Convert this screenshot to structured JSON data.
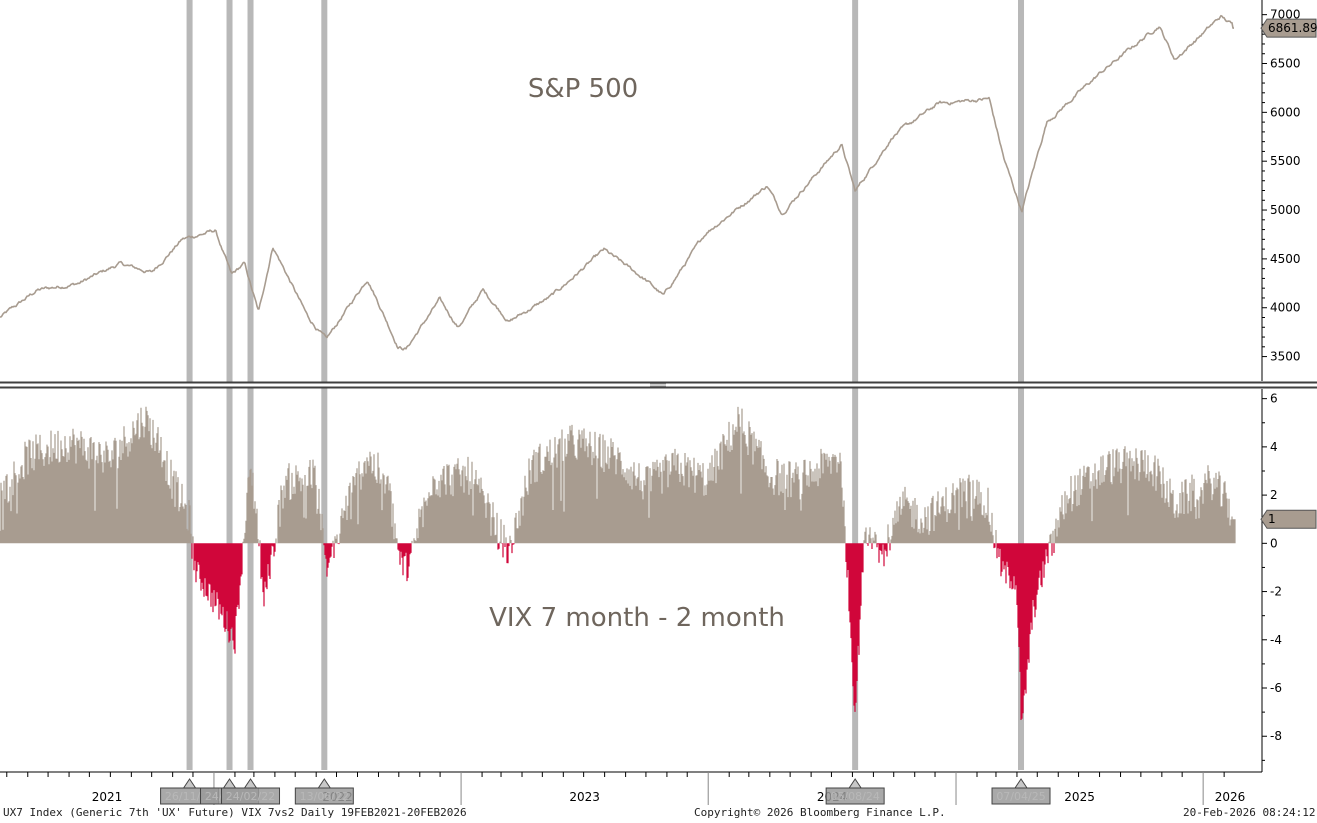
{
  "footer": {
    "left": "UX7 Index (Generic 7th 'UX' Future) VIX 7vs2 Daily 19FEB2021-20FEB2026",
    "center": "Copyright© 2026 Bloomberg Finance L.P.",
    "right": "20-Feb-2026 08:24:12"
  },
  "colors": {
    "price_line": "#a89c90",
    "positive_fill": "#a89c90",
    "negative_fill": "#d0063a",
    "event_band": "#b8b8b8",
    "divider": "#404040",
    "last_label_bg": "#a89c90"
  },
  "chart_data": [
    {
      "type": "line",
      "title": "S&P 500",
      "ylim": [
        3250,
        7150
      ],
      "yticks": [
        3500,
        4000,
        4500,
        5000,
        5500,
        6000,
        6500,
        7000
      ],
      "last_value_label": "6861.89",
      "x": [
        "2021-02-19",
        "2021-04-15",
        "2021-06-15",
        "2021-08-15",
        "2021-10-01",
        "2021-11-15",
        "2022-01-03",
        "2022-01-27",
        "2022-02-15",
        "2022-03-08",
        "2022-03-29",
        "2022-05-20",
        "2022-06-16",
        "2022-08-16",
        "2022-09-30",
        "2022-10-12",
        "2022-11-30",
        "2022-12-28",
        "2023-02-02",
        "2023-03-13",
        "2023-05-15",
        "2023-07-31",
        "2023-09-30",
        "2023-10-27",
        "2023-12-29",
        "2024-03-28",
        "2024-04-19",
        "2024-07-16",
        "2024-08-05",
        "2024-09-30",
        "2024-12-06",
        "2025-02-19",
        "2025-03-13",
        "2025-04-08",
        "2025-05-15",
        "2025-07-31",
        "2025-10-28",
        "2025-11-20",
        "2026-01-27",
        "2026-02-20"
      ],
      "values": [
        3900,
        4180,
        4250,
        4450,
        4360,
        4700,
        4790,
        4330,
        4450,
        3950,
        4630,
        3900,
        3670,
        4300,
        3600,
        3580,
        4080,
        3800,
        4180,
        3860,
        4120,
        4590,
        4290,
        4120,
        4770,
        5250,
        4970,
        5670,
        5190,
        5760,
        6090,
        6140,
        5520,
        4990,
        5900,
        6390,
        6890,
        6540,
        6980,
        6861.89
      ]
    },
    {
      "type": "area",
      "title": "VIX 7 month - 2 month",
      "ylim": [
        -9.4,
        6.4
      ],
      "yticks": [
        6,
        4,
        2,
        0,
        -2,
        -4,
        -6,
        -8
      ],
      "last_value_label": "1",
      "x": [
        "2021-02-19",
        "2021-04-01",
        "2021-06-01",
        "2021-08-01",
        "2021-09-20",
        "2021-10-15",
        "2021-11-01",
        "2021-11-26",
        "2021-12-05",
        "2021-12-20",
        "2022-01-10",
        "2022-02-01",
        "2022-02-24",
        "2022-03-07",
        "2022-03-15",
        "2022-04-15",
        "2022-06-01",
        "2022-06-16",
        "2022-07-15",
        "2022-08-15",
        "2022-09-15",
        "2022-10-03",
        "2022-10-15",
        "2022-11-15",
        "2023-01-15",
        "2023-03-13",
        "2023-04-15",
        "2023-06-15",
        "2023-08-15",
        "2023-10-01",
        "2023-11-15",
        "2024-01-01",
        "2024-02-15",
        "2024-04-01",
        "2024-05-15",
        "2024-07-15",
        "2024-08-05",
        "2024-08-20",
        "2024-09-15",
        "2024-10-15",
        "2024-11-15",
        "2025-01-15",
        "2025-02-15",
        "2025-03-10",
        "2025-03-31",
        "2025-04-08",
        "2025-04-25",
        "2025-05-15",
        "2025-06-15",
        "2025-08-15",
        "2025-10-15",
        "2025-11-20",
        "2026-01-15",
        "2026-02-20"
      ],
      "values": [
        2.0,
        3.6,
        4.2,
        3.5,
        5.2,
        4.0,
        2.5,
        1.0,
        -1.2,
        -1.8,
        -2.8,
        -4.0,
        3.2,
        0.8,
        -2.5,
        2.5,
        2.8,
        -1.2,
        1.5,
        3.6,
        2.4,
        -0.8,
        -1.0,
        2.6,
        2.8,
        -0.4,
        3.2,
        4.2,
        3.6,
        2.4,
        3.2,
        2.6,
        5.1,
        2.8,
        2.6,
        3.6,
        -7.0,
        0.8,
        -0.5,
        1.6,
        1.0,
        2.2,
        1.8,
        -1.2,
        -1.5,
        -7.8,
        -2.8,
        -0.6,
        2.0,
        3.2,
        3.3,
        1.6,
        2.6,
        1.0
      ]
    }
  ],
  "x_axis": {
    "year_labels": [
      "2021",
      "2022",
      "2023",
      "2024",
      "2025",
      "2026"
    ],
    "event_markers": [
      {
        "date": "2021-11-26",
        "label": "26/11/21"
      },
      {
        "date": "2022-01-24",
        "label": "24/01/22"
      },
      {
        "date": "2022-02-24",
        "label": "24/02/22"
      },
      {
        "date": "2022-06-13",
        "label": "13/06/22"
      },
      {
        "date": "2024-08-05",
        "label": "05/08/24"
      },
      {
        "date": "2025-04-07",
        "label": "07/04/25"
      }
    ]
  }
}
